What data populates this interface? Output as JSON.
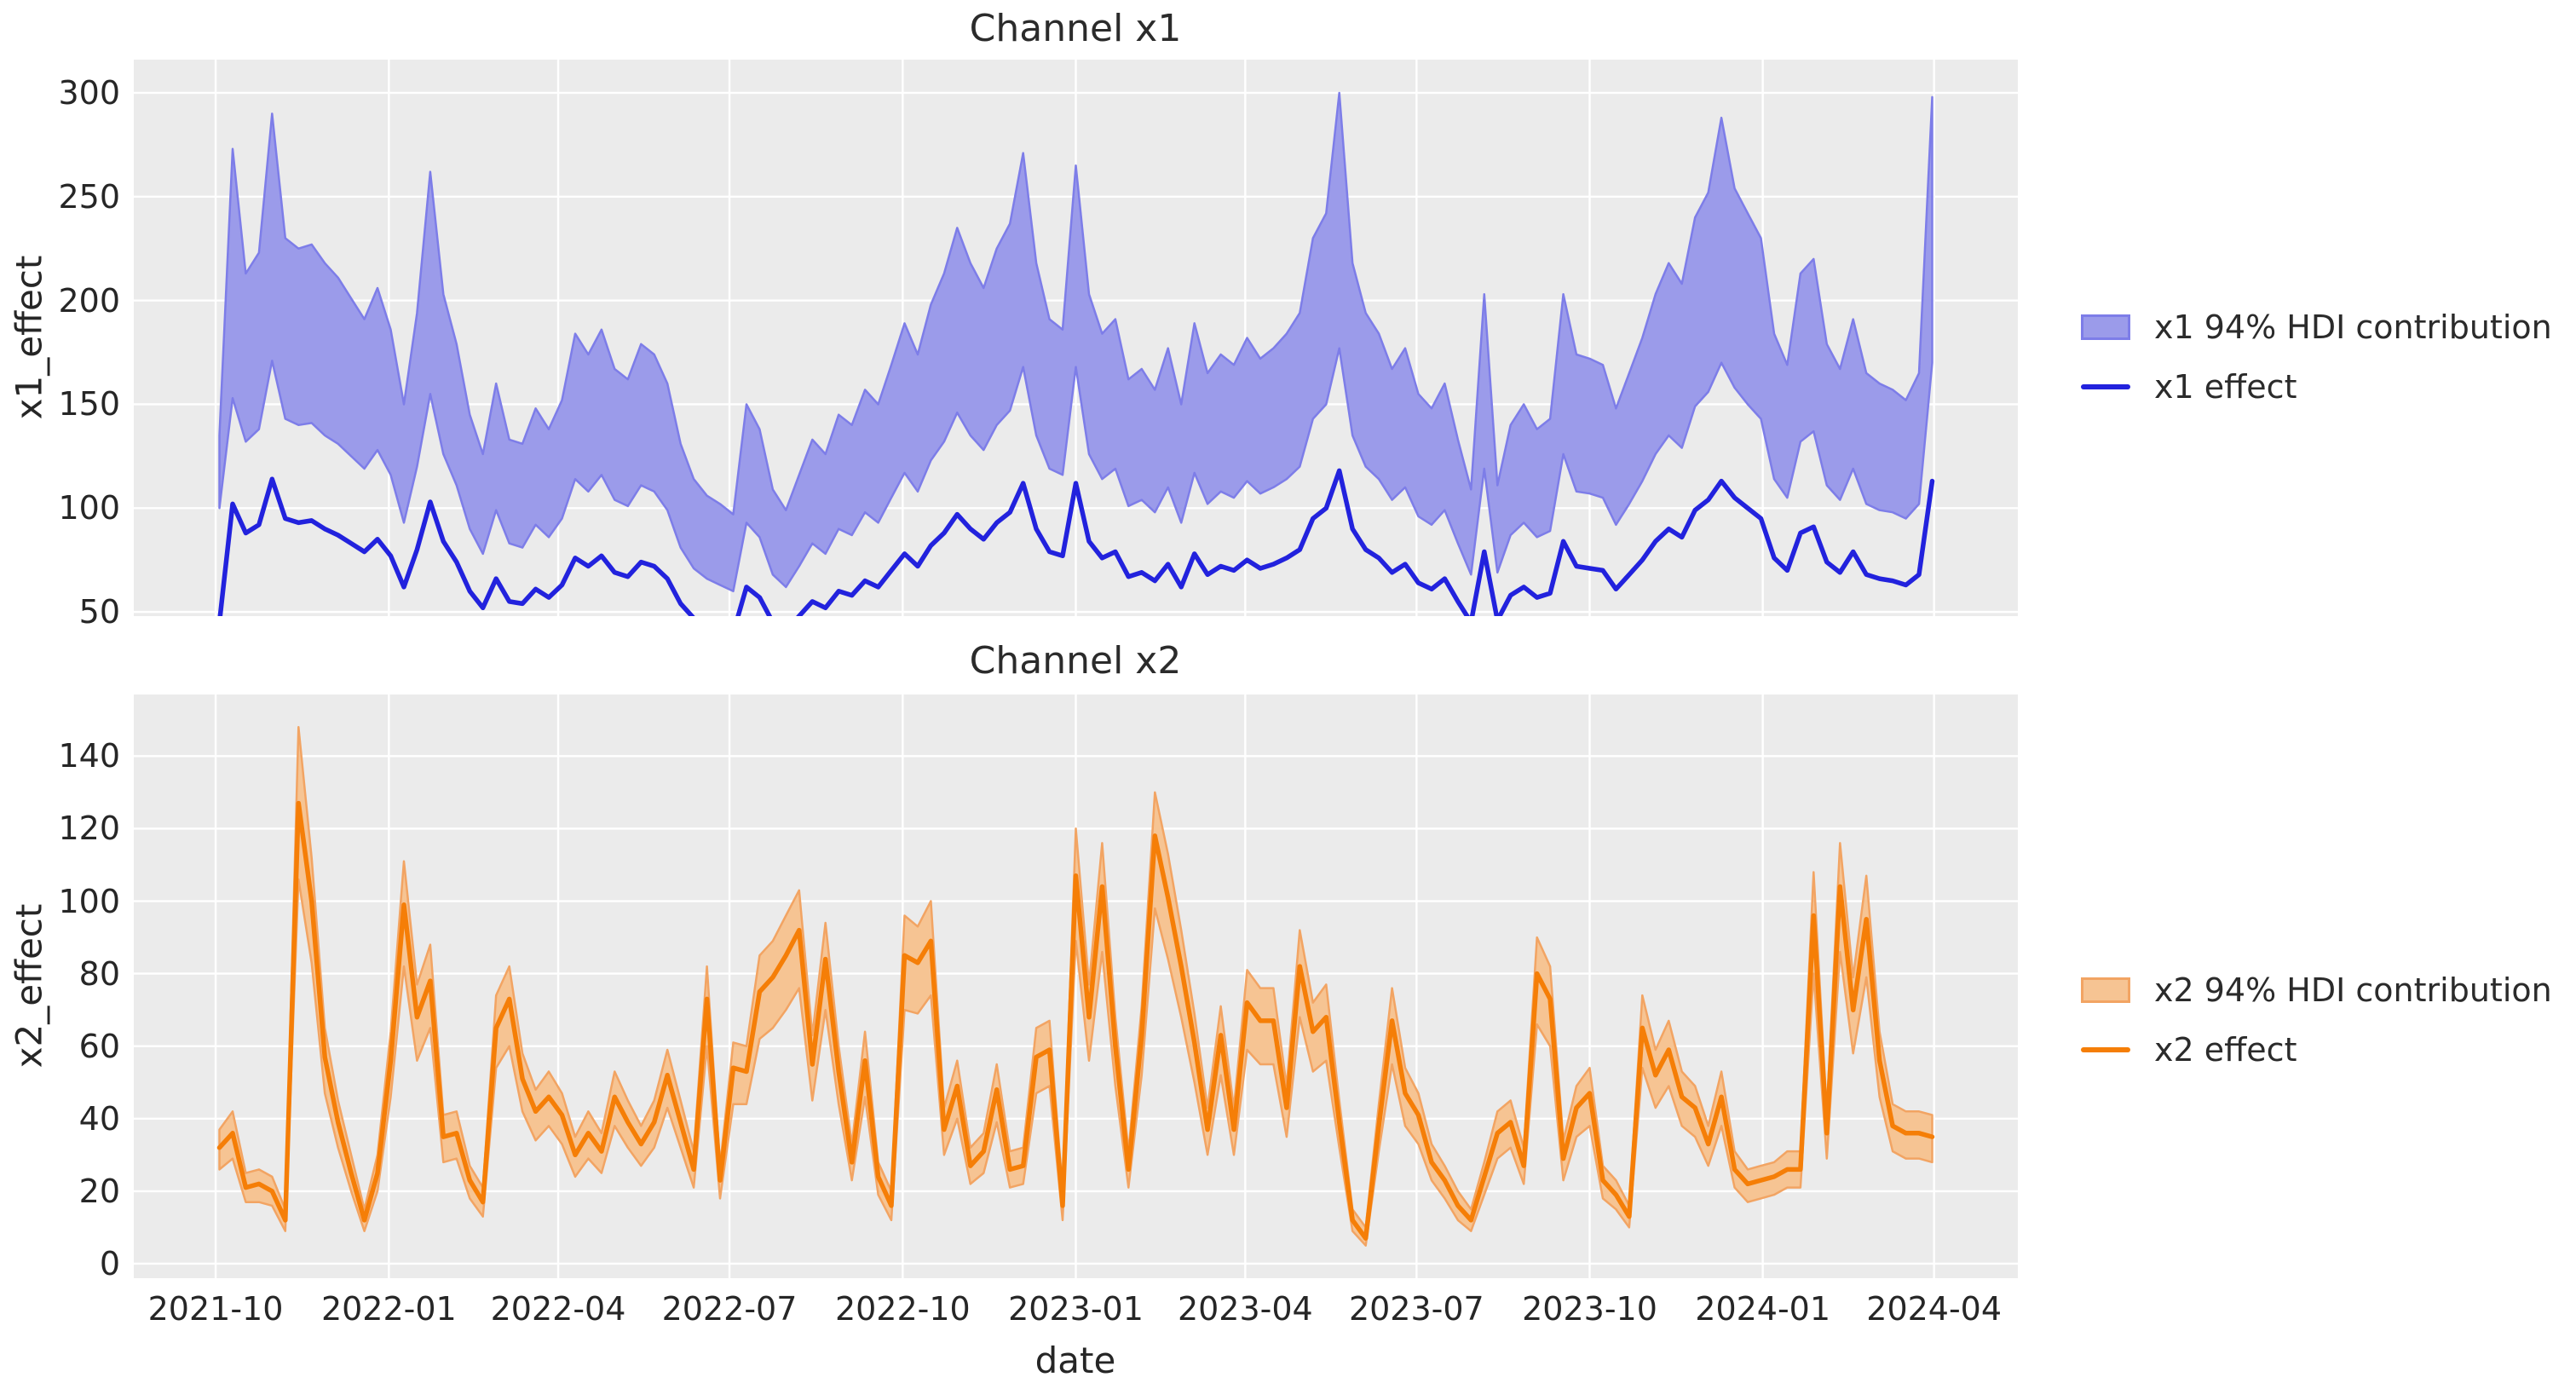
{
  "figure": {
    "background": "#ffffff",
    "plot_background": "#ebebeb",
    "grid_color": "#ffffff",
    "text_color": "#262626"
  },
  "x_axis": {
    "label": "date",
    "start_date": "2021-10-03",
    "freq_days": 7,
    "ticks": [
      {
        "label": "2021-10",
        "week": -0.29
      },
      {
        "label": "2022-01",
        "week": 12.86
      },
      {
        "label": "2022-04",
        "week": 25.71
      },
      {
        "label": "2022-07",
        "week": 38.71
      },
      {
        "label": "2022-10",
        "week": 51.86
      },
      {
        "label": "2023-01",
        "week": 65.0
      },
      {
        "label": "2023-04",
        "week": 77.86
      },
      {
        "label": "2023-07",
        "week": 90.86
      },
      {
        "label": "2023-10",
        "week": 104.0
      },
      {
        "label": "2024-01",
        "week": 117.14
      },
      {
        "label": "2024-04",
        "week": 130.14
      }
    ]
  },
  "chart_data": [
    {
      "id": "x1",
      "type": "area",
      "title": "Channel x1",
      "ylabel": "x1_effect",
      "ylim": [
        48,
        316
      ],
      "yticks": [
        50,
        100,
        150,
        200,
        250,
        300
      ],
      "xlim_weeks": [
        -6.5,
        136.5
      ],
      "line_color": "#2222dd",
      "band_fill": "#9b9bea",
      "band_edge": "#7d7de8",
      "show_xticklabels": false,
      "legend": [
        {
          "type": "patch",
          "label": "x1 94% HDI contribution"
        },
        {
          "type": "line",
          "label": "x1 effect"
        }
      ],
      "series": {
        "line": [
          45,
          102,
          88,
          92,
          114,
          95,
          93,
          94,
          90,
          87,
          83,
          79,
          85,
          77,
          62,
          80,
          103,
          84,
          74,
          60,
          52,
          66,
          55,
          54,
          61,
          57,
          63,
          76,
          72,
          77,
          69,
          67,
          74,
          72,
          66,
          54,
          47,
          44,
          42,
          40,
          62,
          57,
          45,
          41,
          48,
          55,
          52,
          60,
          58,
          65,
          62,
          70,
          78,
          72,
          82,
          88,
          97,
          90,
          85,
          93,
          98,
          112,
          90,
          79,
          77,
          112,
          84,
          76,
          79,
          67,
          69,
          65,
          73,
          62,
          78,
          68,
          72,
          70,
          75,
          71,
          73,
          76,
          80,
          95,
          100,
          118,
          90,
          80,
          76,
          69,
          73,
          64,
          61,
          66,
          55,
          45,
          79,
          46,
          58,
          62,
          57,
          59,
          84,
          72,
          71,
          70,
          61,
          68,
          75,
          84,
          90,
          86,
          99,
          104,
          113,
          105,
          100,
          95,
          76,
          70,
          88,
          91,
          74,
          69,
          79,
          68,
          66,
          65,
          63,
          68,
          113
        ],
        "band_lower": [
          100,
          153,
          132,
          138,
          171,
          143,
          140,
          141,
          135,
          131,
          125,
          119,
          128,
          116,
          93,
          120,
          155,
          126,
          111,
          90,
          78,
          99,
          83,
          81,
          92,
          86,
          95,
          114,
          108,
          116,
          104,
          101,
          111,
          108,
          99,
          81,
          71,
          66,
          63,
          60,
          93,
          86,
          68,
          62,
          72,
          83,
          78,
          90,
          87,
          98,
          93,
          105,
          117,
          108,
          123,
          132,
          146,
          135,
          128,
          140,
          147,
          168,
          135,
          119,
          116,
          168,
          126,
          114,
          119,
          101,
          104,
          98,
          110,
          93,
          117,
          102,
          108,
          105,
          113,
          107,
          110,
          114,
          120,
          143,
          150,
          177,
          135,
          120,
          114,
          104,
          110,
          96,
          92,
          99,
          83,
          68,
          119,
          69,
          87,
          93,
          86,
          89,
          126,
          108,
          107,
          105,
          92,
          102,
          113,
          126,
          135,
          129,
          149,
          156,
          170,
          158,
          150,
          143,
          114,
          105,
          132,
          137,
          111,
          104,
          119,
          102,
          99,
          98,
          95,
          102,
          170
        ],
        "band_upper": [
          135,
          273,
          213,
          223,
          290,
          230,
          225,
          227,
          218,
          211,
          201,
          191,
          206,
          186,
          150,
          194,
          262,
          203,
          179,
          145,
          126,
          160,
          133,
          131,
          148,
          138,
          152,
          184,
          174,
          186,
          167,
          162,
          179,
          174,
          160,
          131,
          114,
          106,
          102,
          97,
          150,
          138,
          109,
          99,
          116,
          133,
          126,
          145,
          140,
          157,
          150,
          169,
          189,
          174,
          198,
          213,
          235,
          218,
          206,
          225,
          237,
          271,
          218,
          191,
          186,
          265,
          203,
          184,
          191,
          162,
          167,
          157,
          177,
          150,
          189,
          165,
          174,
          169,
          182,
          172,
          177,
          184,
          194,
          230,
          242,
          300,
          218,
          194,
          184,
          167,
          177,
          155,
          148,
          160,
          133,
          109,
          203,
          111,
          140,
          150,
          138,
          143,
          203,
          174,
          172,
          169,
          148,
          165,
          182,
          203,
          218,
          208,
          240,
          252,
          288,
          254,
          242,
          230,
          184,
          169,
          213,
          220,
          179,
          167,
          191,
          165,
          160,
          157,
          152,
          165,
          298
        ]
      }
    },
    {
      "id": "x2",
      "type": "area",
      "title": "Channel x2",
      "ylabel": "x2_effect",
      "ylim": [
        -4,
        157
      ],
      "yticks": [
        0,
        20,
        40,
        60,
        80,
        100,
        120,
        140
      ],
      "xlim_weeks": [
        -6.5,
        136.5
      ],
      "line_color": "#f57e07",
      "band_fill": "#f6c493",
      "band_edge": "#f2a463",
      "show_xticklabels": true,
      "legend": [
        {
          "type": "patch",
          "label": "x2 94% HDI contribution"
        },
        {
          "type": "line",
          "label": "x2 effect"
        }
      ],
      "series": {
        "line": [
          32,
          36,
          21,
          22,
          20,
          12,
          127,
          100,
          57,
          39,
          25,
          12,
          25,
          56,
          99,
          68,
          78,
          35,
          36,
          23,
          17,
          65,
          73,
          51,
          42,
          46,
          41,
          30,
          36,
          31,
          46,
          39,
          33,
          39,
          52,
          39,
          26,
          73,
          23,
          54,
          53,
          75,
          79,
          85,
          92,
          55,
          84,
          53,
          28,
          56,
          24,
          16,
          85,
          83,
          89,
          37,
          49,
          27,
          31,
          48,
          26,
          27,
          57,
          59,
          16,
          107,
          68,
          104,
          60,
          26,
          63,
          118,
          101,
          82,
          61,
          37,
          63,
          37,
          72,
          67,
          67,
          43,
          82,
          64,
          68,
          39,
          12,
          7,
          38,
          67,
          47,
          41,
          28,
          23,
          16,
          12,
          24,
          36,
          39,
          27,
          80,
          73,
          29,
          43,
          47,
          23,
          19,
          13,
          65,
          52,
          59,
          46,
          43,
          33,
          46,
          26,
          22,
          23,
          24,
          26,
          26,
          96,
          36,
          104,
          70,
          95,
          56,
          38,
          36,
          36,
          35
        ],
        "band_lower": [
          26,
          29,
          17,
          17,
          16,
          9,
          106,
          83,
          47,
          32,
          20,
          9,
          20,
          46,
          82,
          56,
          65,
          28,
          29,
          18,
          13,
          54,
          60,
          42,
          34,
          38,
          33,
          24,
          29,
          25,
          38,
          32,
          27,
          32,
          43,
          32,
          21,
          60,
          18,
          44,
          44,
          62,
          65,
          70,
          76,
          45,
          70,
          44,
          23,
          46,
          19,
          12,
          70,
          69,
          74,
          30,
          40,
          22,
          25,
          39,
          21,
          22,
          47,
          49,
          12,
          89,
          56,
          86,
          49,
          21,
          52,
          98,
          84,
          68,
          50,
          30,
          52,
          30,
          59,
          55,
          55,
          35,
          68,
          53,
          56,
          32,
          9,
          5,
          31,
          55,
          38,
          33,
          23,
          18,
          12,
          9,
          19,
          29,
          32,
          22,
          66,
          60,
          23,
          35,
          38,
          18,
          15,
          10,
          54,
          43,
          49,
          38,
          35,
          27,
          38,
          21,
          17,
          18,
          19,
          21,
          21,
          80,
          29,
          86,
          58,
          79,
          46,
          31,
          29,
          29,
          28
        ],
        "band_upper": [
          37,
          42,
          25,
          26,
          24,
          15,
          148,
          112,
          65,
          45,
          30,
          15,
          30,
          64,
          111,
          77,
          88,
          41,
          42,
          27,
          21,
          74,
          82,
          58,
          48,
          53,
          47,
          35,
          42,
          36,
          53,
          45,
          38,
          45,
          59,
          45,
          31,
          82,
          27,
          61,
          60,
          85,
          89,
          96,
          103,
          63,
          94,
          60,
          33,
          64,
          28,
          20,
          96,
          93,
          100,
          43,
          56,
          32,
          36,
          55,
          31,
          32,
          65,
          67,
          20,
          120,
          77,
          116,
          68,
          31,
          71,
          130,
          113,
          92,
          69,
          43,
          71,
          43,
          81,
          76,
          76,
          49,
          92,
          72,
          77,
          45,
          15,
          10,
          44,
          76,
          54,
          47,
          33,
          27,
          20,
          15,
          28,
          42,
          45,
          32,
          90,
          82,
          34,
          49,
          54,
          27,
          23,
          16,
          74,
          59,
          67,
          53,
          49,
          38,
          53,
          31,
          26,
          27,
          28,
          31,
          31,
          108,
          42,
          116,
          79,
          107,
          64,
          44,
          42,
          42,
          41
        ]
      }
    }
  ]
}
